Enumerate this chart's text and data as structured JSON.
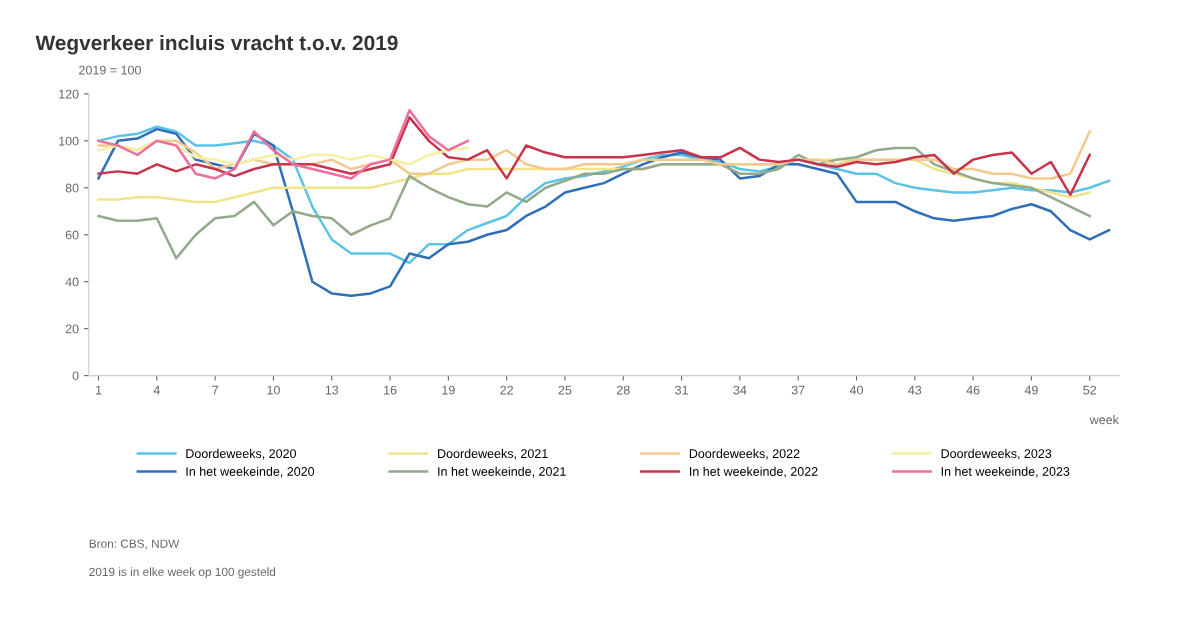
{
  "chart_data": {
    "type": "line",
    "title": "Wegverkeer incluis vracht t.o.v. 2019",
    "ylabel": "2019 = 100",
    "xlabel": "week",
    "x": [
      1,
      2,
      3,
      4,
      5,
      6,
      7,
      8,
      9,
      10,
      11,
      12,
      13,
      14,
      15,
      16,
      17,
      18,
      19,
      20,
      21,
      22,
      23,
      24,
      25,
      26,
      27,
      28,
      29,
      30,
      31,
      32,
      33,
      34,
      35,
      36,
      37,
      38,
      39,
      40,
      41,
      42,
      43,
      44,
      45,
      46,
      47,
      48,
      49,
      50,
      51,
      52,
      53
    ],
    "series": [
      {
        "name": "Doordeweeks, 2020",
        "color": "#5cc3e6",
        "values": [
          100,
          102,
          103,
          106,
          104,
          98,
          98,
          99,
          100,
          98,
          92,
          72,
          58,
          52,
          52,
          52,
          48,
          56,
          56,
          62,
          65,
          68,
          76,
          82,
          84,
          85,
          87,
          89,
          92,
          94,
          94,
          92,
          91,
          88,
          87,
          89,
          92,
          90,
          88,
          86,
          86,
          82,
          80,
          79,
          78,
          78,
          79,
          80,
          79,
          79,
          78,
          80,
          83
        ]
      },
      {
        "name": "In het weekeinde, 2020",
        "color": "#2f6fb8",
        "values": [
          84,
          100,
          101,
          105,
          103,
          92,
          90,
          88,
          103,
          98,
          70,
          40,
          35,
          34,
          35,
          38,
          52,
          50,
          56,
          57,
          60,
          62,
          68,
          72,
          78,
          80,
          82,
          86,
          90,
          93,
          95,
          93,
          92,
          84,
          85,
          90,
          90,
          88,
          86,
          74,
          74,
          74,
          70,
          67,
          66,
          67,
          68,
          71,
          73,
          70,
          62,
          58,
          62
        ]
      },
      {
        "name": "Doordeweeks, 2021",
        "color": "#efe48a",
        "values": [
          75,
          75,
          76,
          76,
          75,
          74,
          74,
          76,
          78,
          80,
          80,
          80,
          80,
          80,
          80,
          82,
          84,
          86,
          86,
          88,
          88,
          88,
          88,
          88,
          88,
          88,
          88,
          88,
          88,
          90,
          90,
          90,
          90,
          90,
          90,
          90,
          92,
          92,
          92,
          92,
          92,
          92,
          92,
          88,
          86,
          84,
          82,
          82,
          80,
          78,
          76,
          78,
          null
        ]
      },
      {
        "name": "In het weekeinde, 2021",
        "color": "#93a98c",
        "values": [
          68,
          66,
          66,
          67,
          50,
          60,
          67,
          68,
          74,
          64,
          70,
          68,
          67,
          60,
          64,
          67,
          85,
          80,
          76,
          73,
          72,
          78,
          74,
          80,
          83,
          86,
          86,
          88,
          88,
          90,
          90,
          90,
          90,
          86,
          86,
          88,
          94,
          90,
          92,
          93,
          96,
          97,
          97,
          90,
          87,
          84,
          82,
          81,
          80,
          76,
          72,
          68,
          null
        ]
      },
      {
        "name": "Doordeweeks, 2022",
        "color": "#f3c98e",
        "values": [
          98,
          98,
          96,
          100,
          100,
          95,
          88,
          90,
          92,
          90,
          90,
          90,
          92,
          88,
          90,
          92,
          86,
          86,
          90,
          92,
          92,
          96,
          90,
          88,
          88,
          90,
          90,
          90,
          92,
          92,
          92,
          92,
          90,
          90,
          90,
          90,
          92,
          92,
          90,
          92,
          92,
          92,
          92,
          92,
          88,
          88,
          86,
          86,
          84,
          84,
          86,
          104,
          null
        ]
      },
      {
        "name": "In het weekeinde, 2022",
        "color": "#c7344c",
        "values": [
          86,
          87,
          86,
          90,
          87,
          90,
          88,
          85,
          88,
          90,
          90,
          90,
          88,
          86,
          88,
          90,
          110,
          100,
          93,
          92,
          96,
          84,
          98,
          95,
          93,
          93,
          93,
          93,
          94,
          95,
          96,
          93,
          93,
          97,
          92,
          91,
          92,
          90,
          89,
          91,
          90,
          91,
          93,
          94,
          86,
          92,
          94,
          95,
          86,
          91,
          77,
          94,
          null
        ]
      },
      {
        "name": "Doordeweeks, 2023",
        "color": "#f6efa4",
        "x": [
          1,
          2,
          3,
          4,
          5,
          6,
          7,
          8,
          9,
          10,
          11,
          12,
          13,
          14,
          15,
          16,
          17,
          18,
          19,
          20
        ],
        "values": [
          96,
          98,
          96,
          100,
          98,
          93,
          92,
          90,
          92,
          94,
          92,
          94,
          94,
          92,
          94,
          92,
          90,
          94,
          96,
          97
        ]
      },
      {
        "name": "In het weekeinde, 2023",
        "color": "#ee6f9c",
        "x": [
          1,
          2,
          3,
          4,
          5,
          6,
          7,
          8,
          9,
          10,
          11,
          12,
          13,
          14,
          15,
          16,
          17,
          18,
          19,
          20
        ],
        "values": [
          100,
          98,
          94,
          100,
          98,
          86,
          84,
          88,
          104,
          96,
          90,
          88,
          86,
          84,
          90,
          92,
          113,
          102,
          96,
          100
        ]
      }
    ],
    "xlim": [
      0.5,
      53.5
    ],
    "xticks": [
      1,
      4,
      7,
      10,
      13,
      16,
      19,
      22,
      25,
      28,
      31,
      34,
      37,
      40,
      43,
      46,
      49,
      52
    ],
    "ylim": [
      0,
      120
    ],
    "yticks": [
      0,
      20,
      40,
      60,
      80,
      100,
      120
    ],
    "grid": false,
    "legend": "bottom",
    "marker": "none",
    "line_style": "solid",
    "annotations": [
      "Bron: CBS, NDW",
      "2019 is in elke week op 100 gesteld"
    ]
  }
}
